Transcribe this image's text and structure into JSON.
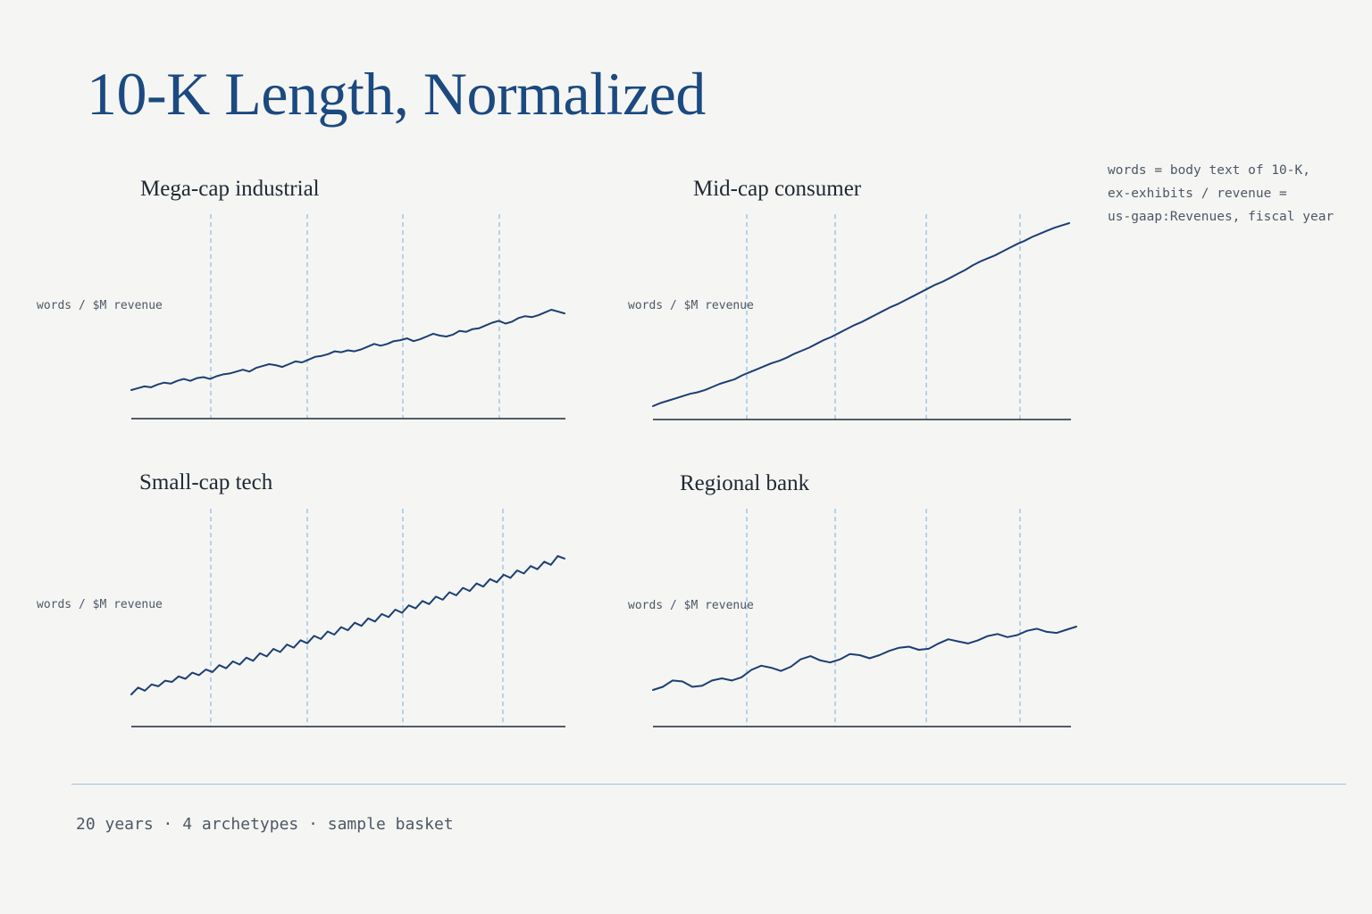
{
  "title": "10-K Length, Normalized",
  "note": "words = body text of 10-K,\nex-exhibits  /  revenue =\nus-gaap:Revenues, fiscal year",
  "footer": "20 years · 4 archetypes · sample basket",
  "colors": {
    "title": "#1b4a80",
    "line": "#1b3f74",
    "gridline": "#8bbbe8",
    "rule": "#9fc3e6",
    "background": "#f5f5f3"
  },
  "chart_data": [
    {
      "type": "line",
      "title": "Mega-cap industrial",
      "ylabel": "words / $M revenue",
      "xlabel": "",
      "grid": "dashed vertical",
      "series": [
        {
          "values": [
            0.13,
            0.15,
            0.17,
            0.16,
            0.19,
            0.21,
            0.2,
            0.23,
            0.25,
            0.23,
            0.26,
            0.27,
            0.25,
            0.28,
            0.3,
            0.31,
            0.33,
            0.35,
            0.33,
            0.37,
            0.39,
            0.41,
            0.4,
            0.38,
            0.41,
            0.44,
            0.43,
            0.46,
            0.49,
            0.5,
            0.52,
            0.55,
            0.54,
            0.56,
            0.55,
            0.57,
            0.6,
            0.63,
            0.61,
            0.63,
            0.66,
            0.67,
            0.69,
            0.66,
            0.68,
            0.71,
            0.74,
            0.72,
            0.71,
            0.73,
            0.77,
            0.76,
            0.79,
            0.8,
            0.83,
            0.86,
            0.88,
            0.85,
            0.87,
            0.91,
            0.93,
            0.92,
            0.94,
            0.97,
            1.0,
            0.98,
            0.96
          ]
        }
      ]
    },
    {
      "type": "line",
      "title": "Mid-cap consumer",
      "ylabel": "words / $M revenue",
      "xlabel": "",
      "grid": "dashed vertical",
      "series": [
        {
          "values": [
            0.12,
            0.16,
            0.19,
            0.22,
            0.25,
            0.28,
            0.3,
            0.33,
            0.37,
            0.41,
            0.44,
            0.47,
            0.52,
            0.56,
            0.6,
            0.64,
            0.68,
            0.71,
            0.75,
            0.8,
            0.84,
            0.88,
            0.93,
            0.98,
            1.02,
            1.07,
            1.12,
            1.17,
            1.21,
            1.26,
            1.31,
            1.36,
            1.41,
            1.45,
            1.5,
            1.55,
            1.6,
            1.65,
            1.7,
            1.74,
            1.79,
            1.84,
            1.89,
            1.95,
            2.0,
            2.04,
            2.08,
            2.13,
            2.18,
            2.23,
            2.27,
            2.32,
            2.36,
            2.4,
            2.44,
            2.47,
            2.5
          ]
        }
      ]
    },
    {
      "type": "line",
      "title": "Small-cap tech",
      "ylabel": "words / $M revenue",
      "xlabel": "",
      "grid": "dashed vertical",
      "series": [
        {
          "values": [
            0.2,
            0.31,
            0.26,
            0.36,
            0.33,
            0.42,
            0.4,
            0.49,
            0.45,
            0.55,
            0.51,
            0.6,
            0.56,
            0.67,
            0.62,
            0.73,
            0.68,
            0.79,
            0.74,
            0.86,
            0.81,
            0.93,
            0.88,
            1.0,
            0.95,
            1.07,
            1.02,
            1.14,
            1.09,
            1.21,
            1.16,
            1.28,
            1.23,
            1.35,
            1.3,
            1.42,
            1.37,
            1.49,
            1.44,
            1.56,
            1.51,
            1.63,
            1.58,
            1.7,
            1.65,
            1.77,
            1.72,
            1.84,
            1.79,
            1.91,
            1.86,
            1.98,
            1.93,
            2.05,
            2.0,
            2.12,
            2.07,
            2.19,
            2.14,
            2.26,
            2.21,
            2.33,
            2.28,
            2.42,
            2.38
          ]
        }
      ]
    },
    {
      "type": "line",
      "title": "Regional bank",
      "ylabel": "words / $M revenue",
      "xlabel": "",
      "grid": "dashed vertical",
      "series": [
        {
          "values": [
            0.21,
            0.24,
            0.3,
            0.29,
            0.24,
            0.25,
            0.3,
            0.32,
            0.3,
            0.33,
            0.4,
            0.44,
            0.42,
            0.39,
            0.43,
            0.5,
            0.53,
            0.49,
            0.47,
            0.5,
            0.55,
            0.54,
            0.51,
            0.54,
            0.58,
            0.61,
            0.62,
            0.59,
            0.6,
            0.65,
            0.69,
            0.67,
            0.65,
            0.68,
            0.72,
            0.74,
            0.71,
            0.73,
            0.77,
            0.79,
            0.76,
            0.75,
            0.78,
            0.81
          ]
        }
      ]
    }
  ]
}
